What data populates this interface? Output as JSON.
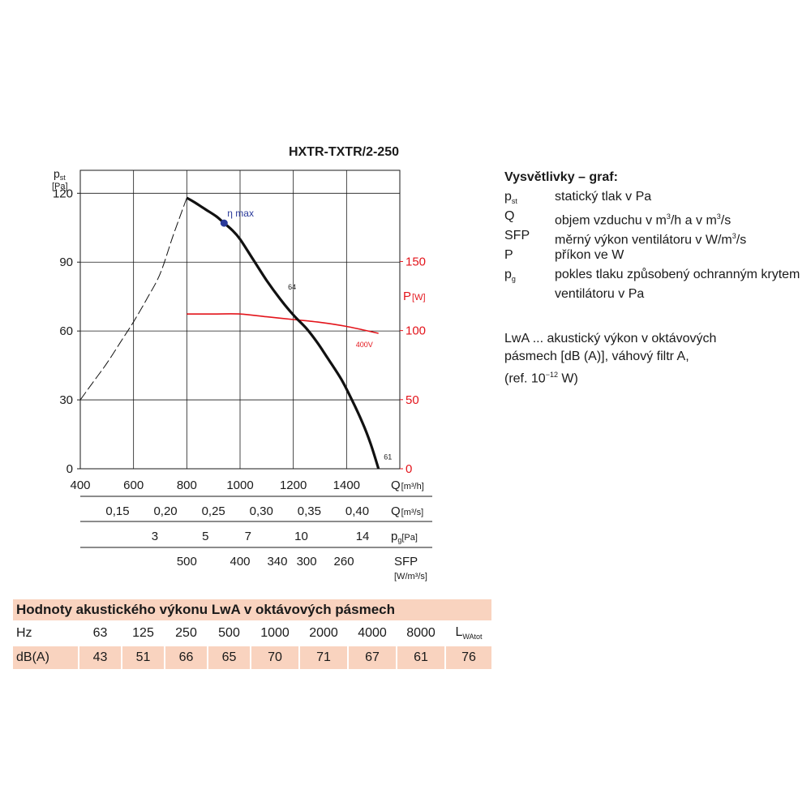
{
  "chart_data": {
    "type": "line",
    "title": "HXTR-TXTR/2-250",
    "y_left": {
      "label_main": "p",
      "label_sub": "st",
      "unit": "[Pa]",
      "lim": [
        0,
        130
      ],
      "ticks": [
        "0",
        "30",
        "60",
        "90",
        "120"
      ],
      "tick_values": [
        0,
        30,
        60,
        90,
        120
      ]
    },
    "y_right": {
      "label_main": "P",
      "unit": "[W]",
      "lim": [
        0,
        216
      ],
      "ticks": [
        "0",
        "50",
        "100",
        "150"
      ],
      "tick_values": [
        0,
        50,
        100,
        150
      ],
      "color": "#e3141b"
    },
    "x": {
      "label": "Q",
      "unit": "[m³/h]",
      "lim": [
        400,
        1600
      ],
      "ticks": [
        "400",
        "600",
        "800",
        "1000",
        "1200",
        "1400"
      ],
      "tick_values": [
        400,
        600,
        800,
        1000,
        1200,
        1400
      ]
    },
    "grid": true,
    "series": [
      {
        "name": "p_st",
        "color": "#111111",
        "x": [
          800,
          830,
          870,
          910,
          940,
          970,
          1000,
          1050,
          1100,
          1150,
          1200,
          1250,
          1290,
          1330,
          1380,
          1420,
          1460,
          1490,
          1520
        ],
        "y": [
          118,
          116,
          113,
          110,
          107,
          104,
          100,
          91,
          82,
          74,
          67,
          61,
          55,
          48,
          39,
          30,
          20,
          11,
          0
        ]
      },
      {
        "name": "system",
        "color": "#111111",
        "dashed": true,
        "x": [
          400,
          450,
          500,
          550,
          600,
          650,
          700,
          750,
          800
        ],
        "y": [
          30,
          38,
          46,
          55,
          64,
          74,
          85,
          102,
          118
        ]
      },
      {
        "name": "P",
        "color": "#e3141b",
        "axis": "right",
        "x": [
          800,
          900,
          1000,
          1100,
          1200,
          1300,
          1400,
          1520
        ],
        "y": [
          112,
          112,
          112,
          110,
          108,
          106,
          103,
          98
        ]
      }
    ],
    "annotations": [
      {
        "text": "η max",
        "x": 940,
        "y": 107,
        "marker": true
      },
      {
        "text": "64",
        "x": 1180,
        "y": 78
      },
      {
        "text": "61",
        "x": 1540,
        "y": 4
      },
      {
        "text": "400V",
        "x": 1450,
        "y": 52
      }
    ],
    "secondary_scales": [
      {
        "label_main": "Q",
        "unit": "[m³/s]",
        "values": [
          0.15,
          0.2,
          0.25,
          0.3,
          0.35,
          0.4
        ],
        "labels": [
          "0,15",
          "0,20",
          "0,25",
          "0,30",
          "0,35",
          "0,40"
        ]
      },
      {
        "label_main": "p",
        "label_sub": "g",
        "unit": "[Pa]",
        "x_at_q": [
          680,
          870,
          1030,
          1230,
          1460
        ],
        "labels": [
          "3",
          "5",
          "7",
          "10",
          "14"
        ]
      },
      {
        "label_main": "SFP",
        "unit": "[W/m³/s]",
        "x_at_q": [
          800,
          1000,
          1140,
          1250,
          1390
        ],
        "labels": [
          "500",
          "400",
          "340",
          "300",
          "260"
        ]
      }
    ]
  },
  "legend": {
    "title": "Vysvětlivky – graf:",
    "items": [
      {
        "symbol": "p",
        "sub": "st",
        "desc": "statický tlak v Pa"
      },
      {
        "symbol": "Q",
        "desc_before": "objem vzduchu v m",
        "desc_sup1": "3",
        "desc_mid": "/h a v m",
        "desc_sup2": "3",
        "desc_after": "/s"
      },
      {
        "symbol": "SFP",
        "desc_before": "měrný výkon ventilátoru v W/m",
        "desc_sup1": "3",
        "desc_after": "/s"
      },
      {
        "symbol": "P",
        "desc": "příkon ve W"
      },
      {
        "symbol": "p",
        "sub": "g",
        "desc": "pokles tlaku způsobený ochranným krytem ventilátoru v Pa"
      }
    ],
    "acoustic_line1": "LwA ... akustický výkon v oktávových",
    "acoustic_line2": "pásmech [dB (A)],  váhový filtr A,",
    "acoustic_line3_before": "(ref. 10",
    "acoustic_line3_sup": "−12",
    "acoustic_line3_after": " W)"
  },
  "table": {
    "title": "Hodnoty akustického výkonu LwA v oktávových pásmech",
    "row1_label": "Hz",
    "row2_label": "dB(A)",
    "bands": [
      "63",
      "125",
      "250",
      "500",
      "1000",
      "2000",
      "4000",
      "8000"
    ],
    "values": [
      "43",
      "51",
      "66",
      "65",
      "70",
      "71",
      "67",
      "61"
    ],
    "total_label_main": "L",
    "total_label_sub": "WAtot",
    "total_value": "76"
  }
}
